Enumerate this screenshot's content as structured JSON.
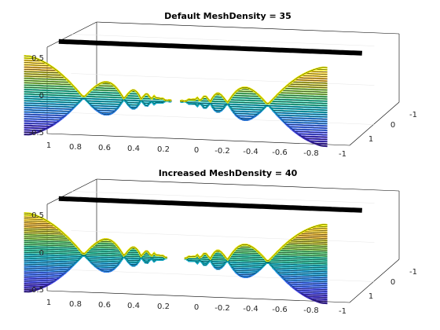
{
  "figure": {
    "background": "#ffffff",
    "colormap": "parula",
    "edge_color": "#000000"
  },
  "chart_data": [
    {
      "type": "surface",
      "title": "Default MeshDensity = 35",
      "mesh_density": 35,
      "x_ticks": [
        "1",
        "0.8",
        "0.6",
        "0.4",
        "0.2",
        "0",
        "-0.2",
        "-0.4",
        "-0.6",
        "-0.8",
        "-1"
      ],
      "y_ticks": [
        "-1",
        "0",
        "1"
      ],
      "z_ticks": [
        "0.5",
        "0",
        "-0.5"
      ],
      "xlim": [
        -1,
        1
      ],
      "ylim": [
        -1,
        1
      ],
      "zlim": [
        -0.5,
        0.5
      ],
      "grid": true,
      "colormap": "parula"
    },
    {
      "type": "surface",
      "title": "Increased MeshDensity = 40",
      "mesh_density": 40,
      "x_ticks": [
        "1",
        "0.8",
        "0.6",
        "0.4",
        "0.2",
        "0",
        "-0.2",
        "-0.4",
        "-0.6",
        "-0.8",
        "-1"
      ],
      "y_ticks": [
        "-1",
        "0",
        "1"
      ],
      "z_ticks": [
        "0.5",
        "0",
        "-0.5"
      ],
      "xlim": [
        -1,
        1
      ],
      "ylim": [
        -1,
        1
      ],
      "zlim": [
        -0.5,
        0.5
      ],
      "grid": true,
      "colormap": "parula"
    }
  ]
}
